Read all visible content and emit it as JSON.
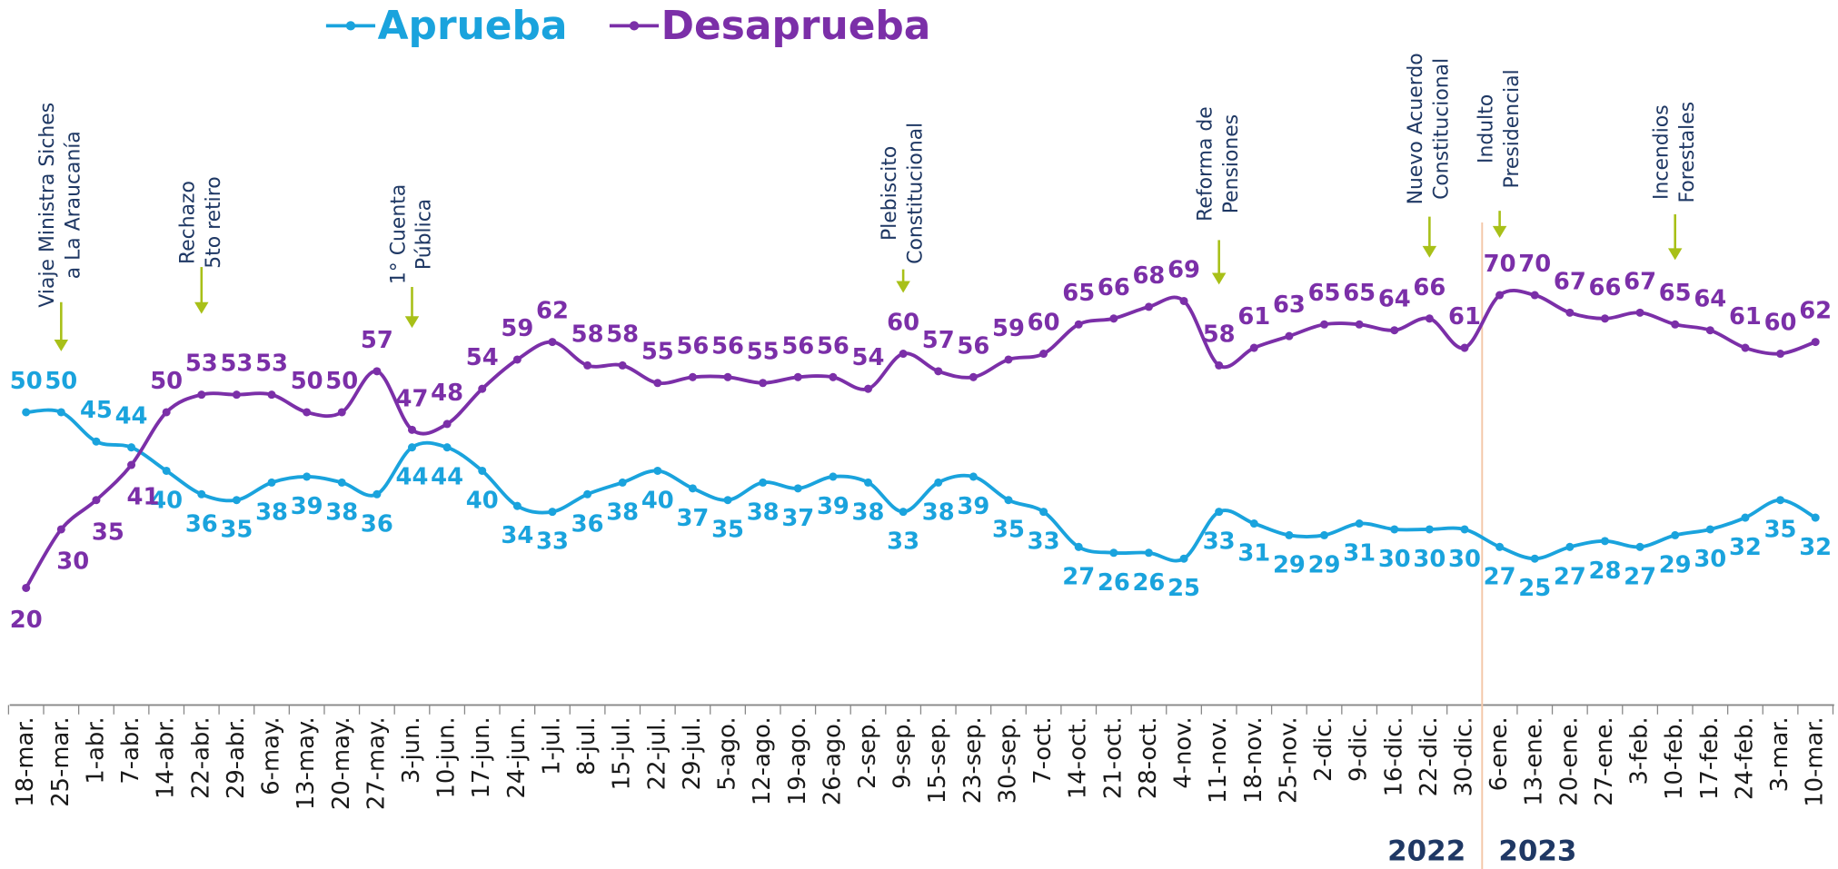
{
  "chart_data": {
    "type": "line",
    "categories": [
      "18-mar.",
      "25-mar.",
      "1-abr.",
      "7-abr.",
      "14-abr.",
      "22-abr.",
      "29-abr.",
      "6-may.",
      "13-may.",
      "20-may.",
      "27-may.",
      "3-jun.",
      "10-jun.",
      "17-jun.",
      "24-jun.",
      "1-jul.",
      "8-jul.",
      "15-jul.",
      "22-jul.",
      "29-jul.",
      "5-ago.",
      "12-ago.",
      "19-ago.",
      "26-ago.",
      "2-sep.",
      "9-sep.",
      "15-sep.",
      "23-sep.",
      "30-sep.",
      "7-oct.",
      "14-oct.",
      "21-oct.",
      "28-oct.",
      "4-nov.",
      "11-nov.",
      "18-nov.",
      "25-nov.",
      "2-dic.",
      "9-dic.",
      "16-dic.",
      "22-dic.",
      "30-dic.",
      "6-ene.",
      "13-ene.",
      "20-ene.",
      "27-ene.",
      "3-feb.",
      "10-feb.",
      "17-feb.",
      "24-feb.",
      "3-mar.",
      "10-mar."
    ],
    "series": [
      {
        "name": "Aprueba",
        "color": "#1aa3dd",
        "values": [
          50,
          50,
          45,
          44,
          40,
          36,
          35,
          38,
          39,
          38,
          36,
          44,
          44,
          40,
          34,
          33,
          36,
          38,
          40,
          37,
          35,
          38,
          37,
          39,
          38,
          33,
          38,
          39,
          35,
          33,
          27,
          26,
          26,
          25,
          33,
          31,
          29,
          29,
          31,
          30,
          30,
          30,
          27,
          25,
          27,
          28,
          27,
          29,
          30,
          32,
          35,
          32
        ]
      },
      {
        "name": "Desaprueba",
        "color": "#7b2fa8",
        "values": [
          20,
          30,
          35,
          41,
          50,
          53,
          53,
          53,
          50,
          50,
          57,
          47,
          48,
          54,
          59,
          62,
          58,
          58,
          55,
          56,
          56,
          55,
          56,
          56,
          54,
          60,
          57,
          56,
          59,
          60,
          65,
          66,
          68,
          69,
          58,
          61,
          63,
          65,
          65,
          64,
          66,
          61,
          70,
          70,
          67,
          66,
          67,
          65,
          64,
          61,
          60,
          62
        ]
      }
    ],
    "ylim": [
      0,
      120
    ],
    "legend": "top",
    "annotations": [
      {
        "text": [
          "Viaje Ministra Siches",
          "a La Araucanía"
        ],
        "category": "25-mar."
      },
      {
        "text": [
          "Rechazo",
          "5to retiro"
        ],
        "category": "22-abr."
      },
      {
        "text": [
          "1° Cuenta",
          "Pública"
        ],
        "category": "3-jun."
      },
      {
        "text": [
          "Plebiscito",
          "Constitucional"
        ],
        "category": "9-sep."
      },
      {
        "text": [
          "Reforma de",
          "Pensiones"
        ],
        "category": "11-nov."
      },
      {
        "text": [
          "Nuevo Acuerdo",
          "Constitucional"
        ],
        "category": "22-dic."
      },
      {
        "text": [
          "Indulto",
          "Presidencial"
        ],
        "category": "6-ene."
      },
      {
        "text": [
          "Incendios",
          "Forestales"
        ],
        "category": "10-feb."
      }
    ],
    "years": [
      {
        "label": "2022",
        "category": "30-dic."
      },
      {
        "label": "2023",
        "category": "6-ene."
      }
    ]
  }
}
